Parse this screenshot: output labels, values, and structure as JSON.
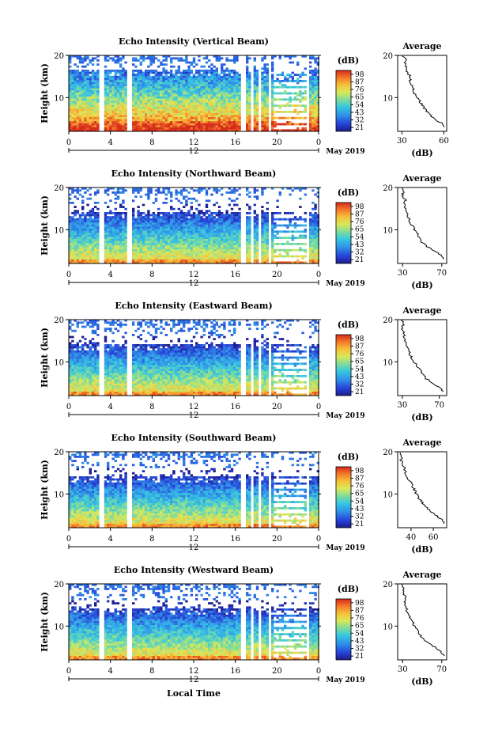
{
  "chart_data": [
    {
      "type": "heatmap",
      "title": "Echo Intensity (Vertical Beam)",
      "ylabel": "Height (km)",
      "ylim": [
        2,
        20
      ],
      "xlim": [
        0,
        24
      ],
      "x_ticks": [
        "0",
        "4",
        "8",
        "12",
        "16",
        "20",
        "0"
      ],
      "y_ticks": [
        "20",
        "10"
      ],
      "date_tick": "12",
      "date_label": "May 2019",
      "colorbar": {
        "unit": "(dB)",
        "ticks": [
          "98",
          "87",
          "76",
          "65",
          "54",
          "43",
          "32",
          "21"
        ]
      },
      "data_gaps_hours": [
        [
          3.0,
          3.3
        ],
        [
          5.6,
          6.0
        ],
        [
          16.6,
          17.0
        ],
        [
          17.5,
          17.7
        ],
        [
          18.2,
          18.4
        ],
        [
          19.2,
          19.5
        ],
        [
          22.9,
          23.1
        ]
      ],
      "profile": {
        "title": "Average",
        "xlabel": "(dB)",
        "x_ticks": [
          "30",
          "60"
        ],
        "y_ticks": [
          "20",
          "10"
        ],
        "xlim": [
          27,
          62
        ],
        "heights_km": [
          3,
          4,
          5,
          6,
          7,
          8,
          9,
          10,
          11,
          12,
          13,
          14,
          15,
          16,
          17,
          18,
          19,
          20
        ],
        "values_db": [
          60,
          58,
          53,
          50,
          47,
          45,
          43,
          41,
          39,
          38,
          37,
          36,
          36,
          34,
          33,
          32,
          34,
          30
        ]
      }
    },
    {
      "type": "heatmap",
      "title": "Echo Intensity (Northward Beam)",
      "ylabel": "Height (km)",
      "ylim": [
        2,
        20
      ],
      "xlim": [
        0,
        24
      ],
      "x_ticks": [
        "0",
        "4",
        "8",
        "12",
        "16",
        "20",
        "0"
      ],
      "y_ticks": [
        "20",
        "10"
      ],
      "date_tick": "12",
      "date_label": "May 2019",
      "colorbar": {
        "unit": "(dB)",
        "ticks": [
          "98",
          "87",
          "76",
          "65",
          "54",
          "43",
          "32",
          "21"
        ]
      },
      "data_gaps_hours": [
        [
          3.0,
          3.3
        ],
        [
          5.6,
          6.0
        ],
        [
          16.6,
          17.0
        ],
        [
          17.5,
          17.7
        ],
        [
          18.2,
          18.4
        ],
        [
          19.2,
          19.5
        ],
        [
          22.9,
          23.1
        ]
      ],
      "profile": {
        "title": "Average",
        "xlabel": "(dB)",
        "x_ticks": [
          "30",
          "70"
        ],
        "y_ticks": [
          "20",
          "10"
        ],
        "xlim": [
          25,
          75
        ],
        "heights_km": [
          3,
          4,
          5,
          6,
          7,
          8,
          9,
          10,
          11,
          12,
          13,
          14,
          15,
          16,
          17,
          18,
          19,
          20
        ],
        "values_db": [
          72,
          69,
          62,
          55,
          50,
          48,
          45,
          42,
          40,
          37,
          36,
          34,
          33,
          32,
          33,
          30,
          31,
          29
        ]
      }
    },
    {
      "type": "heatmap",
      "title": "Echo Intensity (Eastward Beam)",
      "ylabel": "Height (km)",
      "ylim": [
        2,
        20
      ],
      "xlim": [
        0,
        24
      ],
      "x_ticks": [
        "0",
        "4",
        "8",
        "12",
        "16",
        "20",
        "0"
      ],
      "y_ticks": [
        "20",
        "10"
      ],
      "date_tick": "12",
      "date_label": "May 2019",
      "colorbar": {
        "unit": "(dB)",
        "ticks": [
          "98",
          "87",
          "76",
          "65",
          "54",
          "43",
          "32",
          "21"
        ]
      },
      "data_gaps_hours": [
        [
          3.0,
          3.3
        ],
        [
          5.6,
          6.0
        ],
        [
          16.6,
          17.0
        ],
        [
          17.5,
          17.7
        ],
        [
          18.2,
          18.4
        ],
        [
          19.2,
          19.5
        ],
        [
          22.9,
          23.1
        ]
      ],
      "profile": {
        "title": "Average",
        "xlabel": "(dB)",
        "x_ticks": [
          "30",
          "70"
        ],
        "y_ticks": [
          "20",
          "10"
        ],
        "xlim": [
          25,
          78
        ],
        "heights_km": [
          3,
          4,
          5,
          6,
          7,
          8,
          9,
          10,
          11,
          12,
          13,
          14,
          15,
          16,
          17,
          18,
          19,
          20
        ],
        "values_db": [
          74,
          70,
          63,
          56,
          52,
          49,
          46,
          43,
          40,
          38,
          36,
          34,
          33,
          32,
          31,
          30,
          31,
          29
        ]
      }
    },
    {
      "type": "heatmap",
      "title": "Echo Intensity (Southward Beam)",
      "ylabel": "Height (km)",
      "ylim": [
        2,
        20
      ],
      "xlim": [
        0,
        24
      ],
      "x_ticks": [
        "0",
        "4",
        "8",
        "12",
        "16",
        "20",
        "0"
      ],
      "y_ticks": [
        "20",
        "10"
      ],
      "date_tick": "12",
      "date_label": "May 2019",
      "colorbar": {
        "unit": "(dB)",
        "ticks": [
          "98",
          "87",
          "76",
          "65",
          "54",
          "43",
          "32",
          "21"
        ]
      },
      "data_gaps_hours": [
        [
          3.0,
          3.3
        ],
        [
          5.6,
          6.0
        ],
        [
          16.6,
          17.0
        ],
        [
          17.5,
          17.7
        ],
        [
          18.2,
          18.4
        ],
        [
          19.2,
          19.5
        ],
        [
          22.9,
          23.1
        ]
      ],
      "profile": {
        "title": "Average",
        "xlabel": "(dB)",
        "x_ticks": [
          "40",
          "60"
        ],
        "y_ticks": [
          "20",
          "10"
        ],
        "xlim": [
          28,
          72
        ],
        "heights_km": [
          3,
          4,
          5,
          6,
          7,
          8,
          9,
          10,
          11,
          12,
          13,
          14,
          15,
          16,
          17,
          18,
          19,
          20
        ],
        "values_db": [
          70,
          67,
          62,
          57,
          53,
          50,
          47,
          45,
          43,
          41,
          39,
          37,
          35,
          34,
          33,
          31,
          32,
          30
        ]
      }
    },
    {
      "type": "heatmap",
      "title": "Echo Intensity (Westward Beam)",
      "ylabel": "Height (km)",
      "ylim": [
        2,
        20
      ],
      "xlim": [
        0,
        24
      ],
      "x_ticks": [
        "0",
        "4",
        "8",
        "12",
        "16",
        "20",
        "0"
      ],
      "y_ticks": [
        "20",
        "10"
      ],
      "date_tick": "12",
      "date_label": "May 2019",
      "xlabel": "Local Time",
      "colorbar": {
        "unit": "(dB)",
        "ticks": [
          "98",
          "87",
          "76",
          "65",
          "54",
          "43",
          "32",
          "21"
        ]
      },
      "data_gaps_hours": [
        [
          3.0,
          3.3
        ],
        [
          5.6,
          6.0
        ],
        [
          16.6,
          17.0
        ],
        [
          17.5,
          17.7
        ],
        [
          18.2,
          18.4
        ],
        [
          19.2,
          19.5
        ],
        [
          22.9,
          23.1
        ]
      ],
      "profile": {
        "title": "Average",
        "xlabel": "(dB)",
        "x_ticks": [
          "30",
          "70"
        ],
        "y_ticks": [
          "20",
          "10"
        ],
        "xlim": [
          25,
          75
        ],
        "heights_km": [
          3,
          4,
          5,
          6,
          7,
          8,
          9,
          10,
          11,
          12,
          13,
          14,
          15,
          16,
          17,
          18,
          19,
          20
        ],
        "values_db": [
          73,
          69,
          63,
          56,
          51,
          47,
          45,
          42,
          40,
          38,
          36,
          34,
          33,
          32,
          33,
          30,
          31,
          29
        ]
      }
    }
  ]
}
